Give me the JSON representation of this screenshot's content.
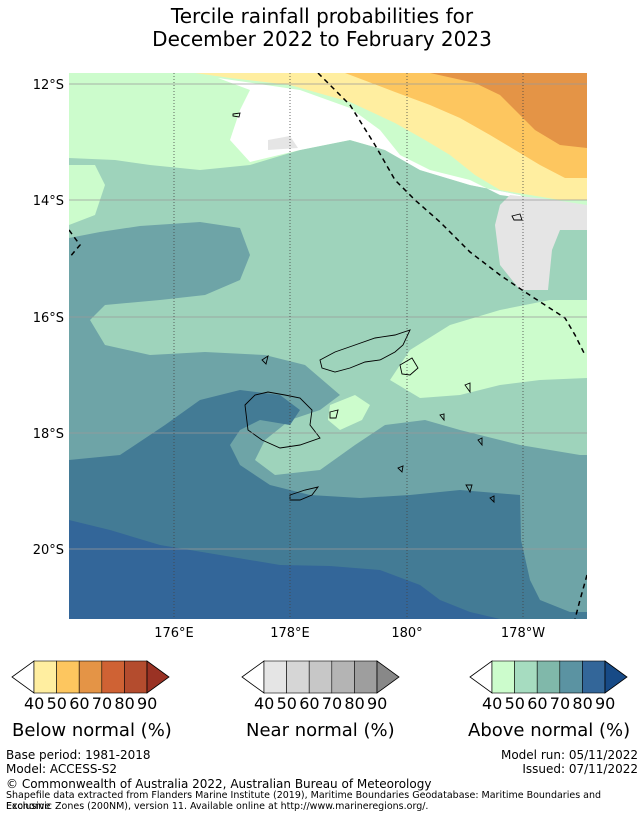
{
  "title": {
    "line1": "Tercile rainfall probabilities for",
    "line2": "December 2022 to February 2023"
  },
  "map": {
    "lat_labels": [
      "12°S",
      "14°S",
      "16°S",
      "18°S",
      "20°S"
    ],
    "lon_labels": [
      "176°E",
      "178°E",
      "180°",
      "178°W"
    ],
    "colors": {
      "above_40": "#ccfccc",
      "above_50": "#9ed3bb",
      "above_60": "#6ea4a7",
      "above_70": "#437b95",
      "above_80": "#336699",
      "below_40": "#ffeea0",
      "below_50": "#fdc65f",
      "below_60": "#e49446",
      "near_40": "#e5e5e5",
      "coast": "#000000",
      "eez_line": "#000000"
    }
  },
  "colorbars": {
    "below": {
      "title": "Below normal (%)",
      "ticks": [
        "40",
        "50",
        "60",
        "70",
        "80",
        "90"
      ],
      "colors": [
        "#ffffff",
        "#ffeea0",
        "#fdc65f",
        "#e49446",
        "#cf6234",
        "#b44c2e",
        "#9a3224"
      ]
    },
    "near": {
      "title": "Near normal (%)",
      "ticks": [
        "40",
        "50",
        "60",
        "70",
        "80",
        "90"
      ],
      "colors": [
        "#ffffff",
        "#e5e5e5",
        "#d6d6d6",
        "#c7c7c7",
        "#b4b4b4",
        "#9e9e9e",
        "#888888"
      ]
    },
    "above": {
      "title": "Above normal (%)",
      "ticks": [
        "40",
        "50",
        "60",
        "70",
        "80",
        "90"
      ],
      "colors": [
        "#ffffff",
        "#ccfccc",
        "#a6dcc0",
        "#80b8aa",
        "#5b93a2",
        "#336699",
        "#174a86"
      ]
    }
  },
  "footer": {
    "base_period": "Base period: 1981-2018",
    "model": "Model: ACCESS-S2",
    "model_run": "Model run: 05/11/2022",
    "issued": "Issued: 07/11/2022",
    "copyright": "© Commonwealth of Australia 2022, Australian Bureau of Meteorology",
    "shapefile_1": "Shapefile data extracted from Flanders Marine Institute (2019), Maritime Boundaries Geodatabase: Maritime Boundaries and Exclusive",
    "shapefile_2": "Economic Zones (200NM), version 11. Available online at http://www.marineregions.org/."
  }
}
